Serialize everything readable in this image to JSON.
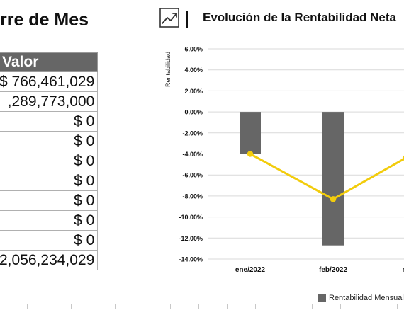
{
  "left_panel": {
    "title": "rre de Mes",
    "table": {
      "header": "Valor",
      "rows": [
        "$ 766,461,029",
        ",289,773,000",
        "$ 0",
        "$ 0",
        "$ 0",
        "$ 0",
        "$ 0",
        "$ 0",
        "$ 0",
        "2,056,234,029"
      ]
    }
  },
  "right_panel": {
    "icon": "trend-up-icon",
    "title": "Evolución de la Rentabilidad Neta"
  },
  "chart_data": {
    "type": "bar",
    "categories": [
      "ene/2022",
      "feb/2022",
      "m"
    ],
    "ylabel": "Rentabilidad",
    "ylim": [
      -14,
      6
    ],
    "yticks": [
      6,
      4,
      2,
      0,
      -2,
      -4,
      -6,
      -8,
      -10,
      -12,
      -14
    ],
    "ytick_labels": [
      "6.00%",
      "4.00%",
      "2.00%",
      "0.00%",
      "-2.00%",
      "-4.00%",
      "-6.00%",
      "-8.00%",
      "-10.00%",
      "-12.00%",
      "-14.00%"
    ],
    "grid": true,
    "series": [
      {
        "name": "Rentabilidad Mensual",
        "kind": "bar",
        "color": "#666666",
        "values": [
          -4.0,
          -12.7,
          null
        ]
      },
      {
        "kind": "line",
        "color": "#f2cc0c",
        "values": [
          -4.0,
          -8.3,
          -4.4
        ]
      }
    ],
    "legend_position": "bottom-right"
  },
  "colors": {
    "table_header_bg": "#666666",
    "bar": "#666666",
    "line": "#f2cc0c"
  }
}
